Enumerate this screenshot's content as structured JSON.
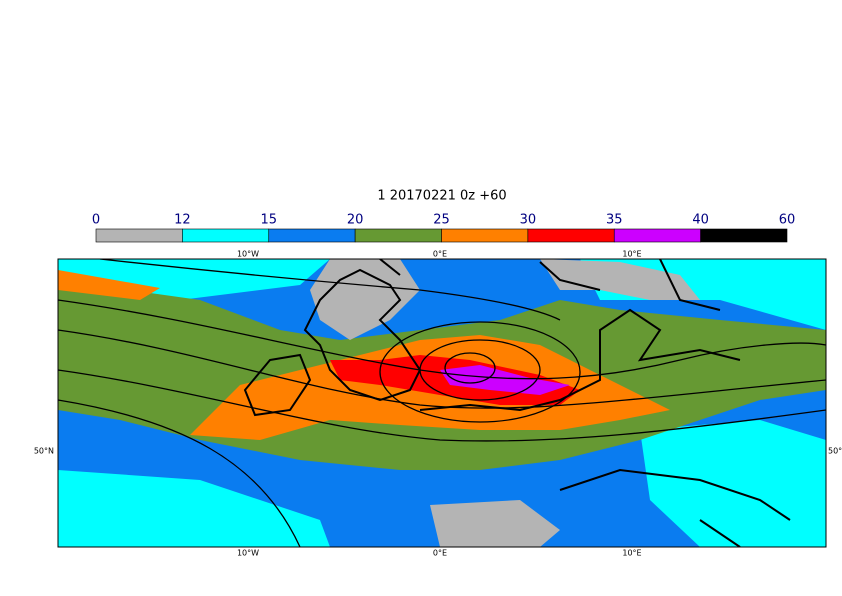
{
  "title": "1 20170221 0z +60",
  "colorbar": {
    "levels": [
      0,
      12,
      15,
      20,
      25,
      30,
      35,
      40,
      60
    ],
    "colors": [
      "#b4b4b4",
      "#00ffff",
      "#0a7cf0",
      "#669933",
      "#ff8000",
      "#ff0000",
      "#cc00ff",
      "#000000"
    ]
  },
  "map": {
    "lon_labels": [
      "10°W",
      "0°E",
      "10°E"
    ],
    "lat_labels": [
      "50°N"
    ]
  }
}
